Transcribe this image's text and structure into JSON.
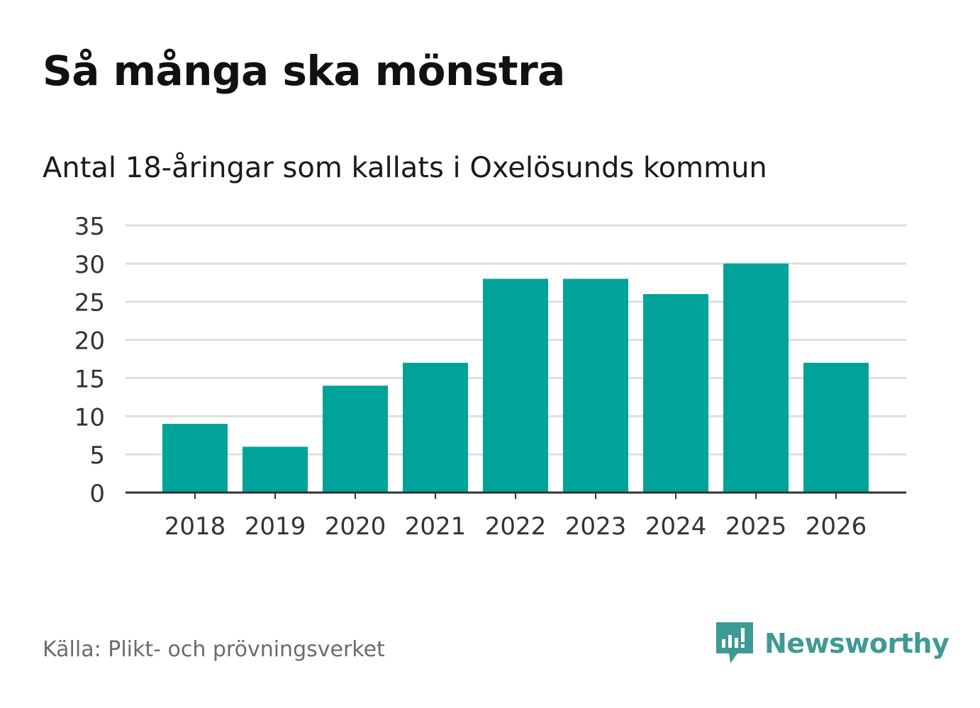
{
  "title": "Så många ska mönstra",
  "subtitle": "Antal 18-åringar som kallats i Oxelösunds kommun",
  "source": "Källa: Plikt- och prövningsverket",
  "brand": {
    "name": "Newsworthy",
    "icon": "newsworthy-logo-icon",
    "color": "#3f9a94"
  },
  "colors": {
    "bar": "#00a39a",
    "grid": "#dddddd",
    "axis": "#333333",
    "tick_text": "#333333"
  },
  "chart_data": {
    "type": "bar",
    "title": "Så många ska mönstra",
    "subtitle": "Antal 18-åringar som kallats i Oxelösunds kommun",
    "xlabel": "",
    "ylabel": "",
    "categories": [
      "2018",
      "2019",
      "2020",
      "2021",
      "2022",
      "2023",
      "2024",
      "2025",
      "2026"
    ],
    "values": [
      9,
      6,
      14,
      17,
      28,
      28,
      26,
      30,
      17
    ],
    "ylim": [
      0,
      35
    ],
    "yticks": [
      0,
      5,
      10,
      15,
      20,
      25,
      30,
      35
    ],
    "grid": true,
    "legend": "none"
  }
}
